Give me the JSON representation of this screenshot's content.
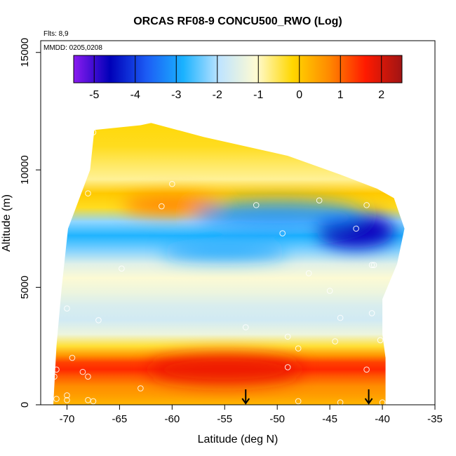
{
  "chart_data": {
    "type": "heatmap",
    "title": "ORCAS RF08-9 CONCU500_RWO (Log)",
    "annotations": {
      "flights": "Flts: 8,9",
      "dates": "MMDD: 0205,0208"
    },
    "xlabel": "Latitude (deg N)",
    "ylabel": "Altitude (m)",
    "xlim": [
      -72.5,
      -35
    ],
    "ylim": [
      0,
      15500
    ],
    "x_ticks": [
      -70,
      -65,
      -60,
      -55,
      -50,
      -45,
      -40,
      -35
    ],
    "y_ticks": [
      0,
      5000,
      10000,
      15000
    ],
    "x_tick_labels": [
      "-70",
      "-65",
      "-60",
      "-55",
      "-50",
      "-45",
      "-40",
      "-35"
    ],
    "y_tick_labels": [
      "0",
      "5000",
      "10000",
      "15000"
    ],
    "colorbar": {
      "range": [
        -5.5,
        2.5
      ],
      "ticks": [
        -5,
        -4,
        -3,
        -2,
        -1,
        0,
        1,
        2
      ],
      "tick_labels": [
        "-5",
        "-4",
        "-3",
        "-2",
        "-1",
        "0",
        "1",
        "2"
      ],
      "colors": [
        "#8a1bf0",
        "#0000b8",
        "#1c5cf5",
        "#1ab2ff",
        "#bfe4ff",
        "#fffbd2",
        "#ffd700",
        "#ff8a00",
        "#ff1a00",
        "#a01414"
      ]
    },
    "domain": {
      "left_edge": [
        [
          0,
          -71.3
        ],
        [
          2500,
          -71.0
        ],
        [
          5000,
          -70.5
        ],
        [
          7500,
          -69.9
        ],
        [
          10000,
          -67.8
        ],
        [
          11700,
          -67.4
        ]
      ],
      "right_edge": [
        [
          0,
          -39.7
        ],
        [
          2000,
          -39.7
        ],
        [
          3000,
          -40.0
        ],
        [
          4500,
          -40.0
        ],
        [
          6000,
          -38.6
        ],
        [
          7500,
          -37.9
        ],
        [
          8800,
          -38.9
        ],
        [
          9200,
          -40.5
        ],
        [
          9800,
          -44.0
        ],
        [
          10600,
          -49.0
        ],
        [
          11400,
          -57.0
        ],
        [
          12000,
          -62.0
        ],
        [
          11900,
          -63.0
        ],
        [
          11700,
          -67.4
        ]
      ]
    },
    "field_profile": [
      {
        "altitude": 0,
        "value": 0.2
      },
      {
        "altitude": 400,
        "value": 0.5
      },
      {
        "altitude": 800,
        "value": 0.7
      },
      {
        "altitude": 1200,
        "value": 1.1
      },
      {
        "altitude": 1500,
        "value": 1.5
      },
      {
        "altitude": 1800,
        "value": 1.3
      },
      {
        "altitude": 2100,
        "value": 0.6
      },
      {
        "altitude": 2500,
        "value": -0.4
      },
      {
        "altitude": 3000,
        "value": -1.3
      },
      {
        "altitude": 3600,
        "value": -1.7
      },
      {
        "altitude": 4200,
        "value": -1.6
      },
      {
        "altitude": 4800,
        "value": -1.3
      },
      {
        "altitude": 5400,
        "value": -1.1
      },
      {
        "altitude": 6000,
        "value": -1.5
      },
      {
        "altitude": 6600,
        "value": -2.3
      },
      {
        "altitude": 7200,
        "value": -2.8
      },
      {
        "altitude": 7800,
        "value": -2.2
      },
      {
        "altitude": 8400,
        "value": -0.3
      },
      {
        "altitude": 9000,
        "value": 0.0
      },
      {
        "altitude": 9600,
        "value": -0.8
      },
      {
        "altitude": 10200,
        "value": -0.6
      },
      {
        "altitude": 11000,
        "value": -0.3
      },
      {
        "altitude": 12000,
        "value": -0.2
      }
    ],
    "features": [
      {
        "lat": -55,
        "altitude": 1500,
        "value": 1.8
      },
      {
        "lat": -60,
        "altitude": 8500,
        "value": 0.9
      },
      {
        "lat": -42.5,
        "altitude": 7400,
        "value": -4.7
      },
      {
        "lat": -50,
        "altitude": 8100,
        "value": -3.2
      },
      {
        "lat": -55,
        "altitude": 6500,
        "value": -3.0
      }
    ],
    "sample_points": [
      {
        "lat": -67.5,
        "altitude": 11600
      },
      {
        "lat": -68.0,
        "altitude": 9000
      },
      {
        "lat": -60.0,
        "altitude": 9400
      },
      {
        "lat": -61.0,
        "altitude": 8450
      },
      {
        "lat": -52.0,
        "altitude": 8500
      },
      {
        "lat": -46.0,
        "altitude": 8700
      },
      {
        "lat": -41.5,
        "altitude": 8500
      },
      {
        "lat": -42.5,
        "altitude": 7500
      },
      {
        "lat": -49.5,
        "altitude": 7300
      },
      {
        "lat": -41.0,
        "altitude": 5950
      },
      {
        "lat": -40.8,
        "altitude": 5950
      },
      {
        "lat": -47.0,
        "altitude": 5600
      },
      {
        "lat": -64.8,
        "altitude": 5800
      },
      {
        "lat": -45.0,
        "altitude": 4850
      },
      {
        "lat": -70.0,
        "altitude": 4100
      },
      {
        "lat": -67.0,
        "altitude": 3600
      },
      {
        "lat": -41.0,
        "altitude": 3900
      },
      {
        "lat": -44.0,
        "altitude": 3700
      },
      {
        "lat": -53.0,
        "altitude": 3300
      },
      {
        "lat": -49.0,
        "altitude": 2900
      },
      {
        "lat": -48.0,
        "altitude": 2400
      },
      {
        "lat": -44.5,
        "altitude": 2700
      },
      {
        "lat": -40.2,
        "altitude": 2750
      },
      {
        "lat": -69.5,
        "altitude": 2000
      },
      {
        "lat": -71.0,
        "altitude": 1500
      },
      {
        "lat": -71.2,
        "altitude": 1200
      },
      {
        "lat": -68.0,
        "altitude": 1200
      },
      {
        "lat": -49.0,
        "altitude": 1600
      },
      {
        "lat": -41.5,
        "altitude": 1500
      },
      {
        "lat": -68.5,
        "altitude": 1400
      },
      {
        "lat": -63.0,
        "altitude": 700
      },
      {
        "lat": -70.0,
        "altitude": 400
      },
      {
        "lat": -71.0,
        "altitude": 250
      },
      {
        "lat": -70.0,
        "altitude": 200
      },
      {
        "lat": -68.0,
        "altitude": 200
      },
      {
        "lat": -67.5,
        "altitude": 150
      },
      {
        "lat": -48.0,
        "altitude": 150
      },
      {
        "lat": -44.0,
        "altitude": 100
      },
      {
        "lat": -40.0,
        "altitude": 100
      }
    ],
    "arrows": [
      {
        "lat": -53.0,
        "direction": "down"
      },
      {
        "lat": -41.3,
        "direction": "down"
      }
    ],
    "grid": false
  }
}
